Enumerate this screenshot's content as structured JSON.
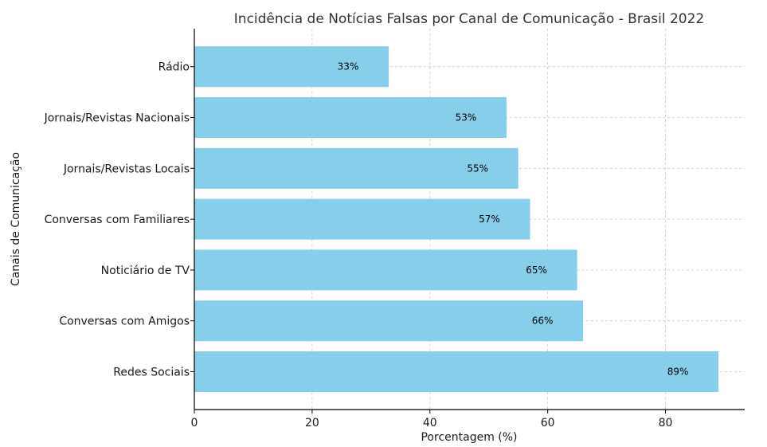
{
  "chart_data": {
    "type": "bar",
    "orientation": "horizontal",
    "title": "Incidência de Notícias Falsas por Canal de Comunicação - Brasil 2022",
    "xlabel": "Porcentagem (%)",
    "ylabel": "Canais de Comunicação",
    "categories": [
      "Redes Sociais",
      "Conversas com Amigos",
      "Noticiário de TV",
      "Conversas com Familiares",
      "Jornais/Revistas Locais",
      "Jornais/Revistas Nacionais",
      "Rádio"
    ],
    "values": [
      89,
      66,
      65,
      57,
      55,
      53,
      33
    ],
    "data_labels": [
      "89%",
      "66%",
      "65%",
      "57%",
      "55%",
      "53%",
      "33%"
    ],
    "xlim": [
      0,
      93.45
    ],
    "xticks": [
      0,
      20,
      40,
      60,
      80
    ],
    "grid": true,
    "bar_color": "#87ceeb"
  }
}
